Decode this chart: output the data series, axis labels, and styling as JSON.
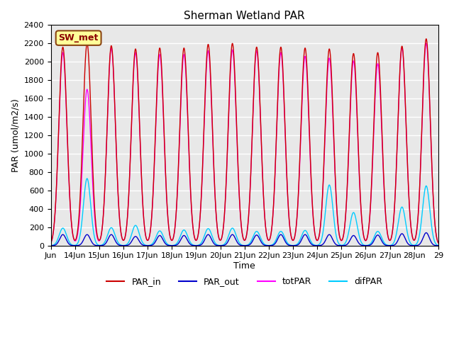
{
  "title": "Sherman Wetland PAR",
  "ylabel": "PAR (umol/m2/s)",
  "xlabel": "Time",
  "annotation": "SW_met",
  "ylim": [
    0,
    2400
  ],
  "xlim_days": [
    13.0,
    29.0
  ],
  "background_color": "#e8e8e8",
  "grid_color": "white",
  "legend": [
    "PAR_in",
    "PAR_out",
    "totPAR",
    "difPAR"
  ],
  "line_colors": {
    "PAR_in": "#cc0000",
    "PAR_out": "#0000cc",
    "totPAR": "#ff00ff",
    "difPAR": "#00ccff"
  },
  "xtick_positions": [
    13,
    14,
    15,
    16,
    17,
    18,
    19,
    20,
    21,
    22,
    23,
    24,
    25,
    26,
    27,
    28,
    29
  ],
  "xtick_labels": [
    "Jun",
    "14Jun",
    "15Jun",
    "16Jun",
    "17Jun",
    "18Jun",
    "19Jun",
    "20Jun",
    "21Jun",
    "22Jun",
    "23Jun",
    "24Jun",
    "25Jun",
    "26Jun",
    "27Jun",
    "28Jun",
    "29"
  ],
  "ytick_positions": [
    0,
    200,
    400,
    600,
    800,
    1000,
    1200,
    1400,
    1600,
    1800,
    2000,
    2200,
    2400
  ],
  "days_start": 13,
  "num_days": 16,
  "peaks": {
    "PAR_in": [
      2160,
      2200,
      2175,
      2140,
      2150,
      2150,
      2190,
      2200,
      2160,
      2160,
      2150,
      2140,
      2090,
      2100,
      2170,
      2250
    ],
    "totPAR": [
      2100,
      1700,
      2150,
      2100,
      2080,
      2080,
      2120,
      2130,
      2120,
      2100,
      2060,
      2040,
      2010,
      1980,
      2150,
      2200
    ],
    "PAR_out": [
      120,
      120,
      120,
      100,
      110,
      110,
      120,
      120,
      115,
      120,
      120,
      120,
      110,
      115,
      130,
      140
    ],
    "difPAR": [
      190,
      730,
      195,
      220,
      160,
      170,
      185,
      190,
      155,
      155,
      165,
      660,
      360,
      155,
      420,
      650
    ]
  }
}
